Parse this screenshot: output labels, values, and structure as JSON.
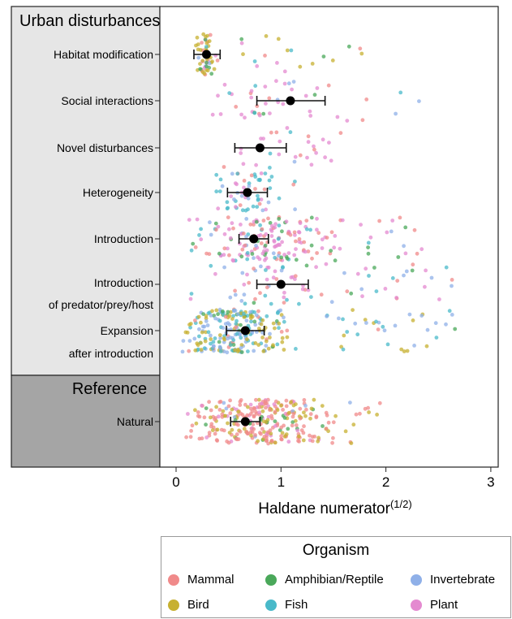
{
  "chart_data": {
    "type": "scatter",
    "xlabel": "Haldane numerator",
    "xlabel_sup": "(1/2)",
    "xlim": [
      -0.15,
      3.15
    ],
    "x_ticks": [
      "0",
      "1",
      "2",
      "3"
    ],
    "groups": [
      {
        "name": "Urban disturbances",
        "categories": [
          "habitat",
          "social",
          "novel",
          "heterogeneity",
          "introduction",
          "predator",
          "expansion"
        ]
      },
      {
        "name": "Reference",
        "categories": [
          "natural"
        ]
      }
    ],
    "categories": [
      {
        "key": "habitat",
        "label": [
          "Habitat modification"
        ],
        "mean": 0.29,
        "ci": [
          0.17,
          0.42
        ]
      },
      {
        "key": "social",
        "label": [
          "Social interactions"
        ],
        "mean": 1.09,
        "ci": [
          0.77,
          1.42
        ]
      },
      {
        "key": "novel",
        "label": [
          "Novel disturbances"
        ],
        "mean": 0.8,
        "ci": [
          0.56,
          1.05
        ]
      },
      {
        "key": "heterogeneity",
        "label": [
          "Heterogeneity"
        ],
        "mean": 0.68,
        "ci": [
          0.49,
          0.87
        ]
      },
      {
        "key": "introduction",
        "label": [
          "Introduction"
        ],
        "mean": 0.74,
        "ci": [
          0.6,
          0.88
        ]
      },
      {
        "key": "predator",
        "label": [
          "Introduction",
          "of predator/prey/host"
        ],
        "mean": 1.0,
        "ci": [
          0.77,
          1.26
        ]
      },
      {
        "key": "expansion",
        "label": [
          "Expansion",
          "after introduction"
        ],
        "mean": 0.66,
        "ci": [
          0.48,
          0.84
        ]
      },
      {
        "key": "natural",
        "label": [
          "Natural"
        ],
        "mean": 0.66,
        "ci": [
          0.52,
          0.8
        ]
      }
    ],
    "legend": {
      "title": "Organism",
      "items": [
        {
          "name": "Mammal",
          "color": "#f08a8a"
        },
        {
          "name": "Amphibian/Reptile",
          "color": "#4aa85a"
        },
        {
          "name": "Invertebrate",
          "color": "#8fb0e8"
        },
        {
          "name": "Bird",
          "color": "#c7b030"
        },
        {
          "name": "Fish",
          "color": "#49b9c9"
        },
        {
          "name": "Plant",
          "color": "#e48ad0"
        }
      ]
    },
    "point_clouds": [
      {
        "category": "habitat",
        "n": 70,
        "core": [
          0.15,
          0.42
        ],
        "tail_max": 2.1,
        "tail_frac": 0.3,
        "mix": {
          "Bird": 0.55,
          "Mammal": 0.15,
          "Amphibian/Reptile": 0.12,
          "Plant": 0.1,
          "Fish": 0.04,
          "Invertebrate": 0.04
        }
      },
      {
        "category": "social",
        "n": 45,
        "core": [
          0.3,
          1.5
        ],
        "tail_max": 2.35,
        "tail_frac": 0.2,
        "mix": {
          "Plant": 0.45,
          "Mammal": 0.2,
          "Invertebrate": 0.15,
          "Fish": 0.1,
          "Amphibian/Reptile": 0.1
        }
      },
      {
        "category": "novel",
        "n": 30,
        "core": [
          0.3,
          1.55
        ],
        "tail_max": 1.8,
        "tail_frac": 0.1,
        "mix": {
          "Plant": 0.6,
          "Mammal": 0.2,
          "Invertebrate": 0.1,
          "Fish": 0.1
        }
      },
      {
        "category": "heterogeneity",
        "n": 60,
        "core": [
          0.38,
          1.05
        ],
        "tail_max": 1.2,
        "tail_frac": 0.05,
        "mix": {
          "Fish": 0.55,
          "Plant": 0.2,
          "Invertebrate": 0.15,
          "Mammal": 0.1
        }
      },
      {
        "category": "introduction",
        "n": 190,
        "core": [
          0.0,
          1.75
        ],
        "tail_max": 2.35,
        "tail_frac": 0.08,
        "mix": {
          "Plant": 0.38,
          "Mammal": 0.28,
          "Amphibian/Reptile": 0.16,
          "Invertebrate": 0.1,
          "Fish": 0.08
        }
      },
      {
        "category": "predator",
        "n": 80,
        "core": [
          0.0,
          1.6
        ],
        "tail_max": 2.7,
        "tail_frac": 0.3,
        "mix": {
          "Plant": 0.3,
          "Invertebrate": 0.3,
          "Mammal": 0.15,
          "Fish": 0.15,
          "Amphibian/Reptile": 0.1
        }
      },
      {
        "category": "expansion",
        "n": 280,
        "core": [
          0.0,
          1.1
        ],
        "tail_max": 2.7,
        "tail_frac": 0.12,
        "mix": {
          "Invertebrate": 0.38,
          "Bird": 0.28,
          "Fish": 0.22,
          "Amphibian/Reptile": 0.07,
          "Mammal": 0.05
        }
      },
      {
        "category": "natural",
        "n": 300,
        "core": [
          0.0,
          1.6
        ],
        "tail_max": 2.0,
        "tail_frac": 0.03,
        "mix": {
          "Mammal": 0.55,
          "Bird": 0.25,
          "Plant": 0.1,
          "Amphibian/Reptile": 0.05,
          "Invertebrate": 0.05
        }
      }
    ]
  }
}
